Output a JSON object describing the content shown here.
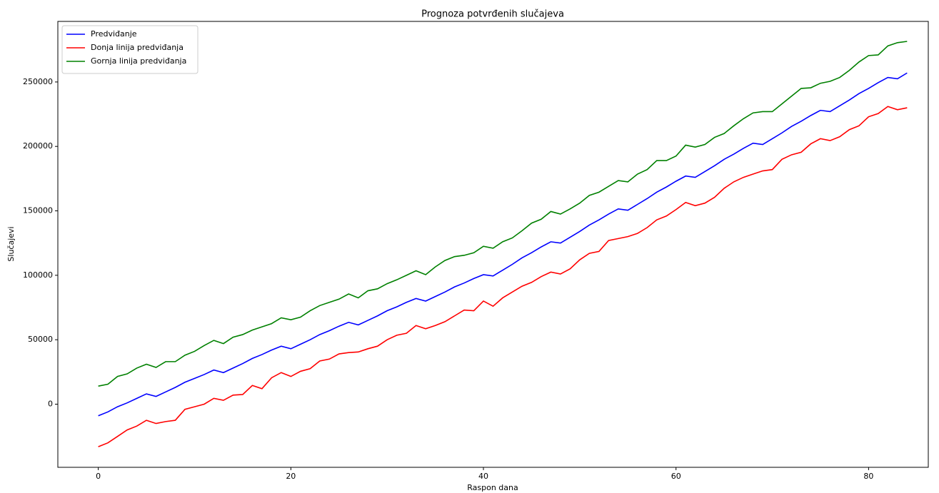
{
  "chart_data": {
    "type": "line",
    "title": "Prognoza potvrđenih slučajeva",
    "x_label": "Raspon dana",
    "y_label": "Slučajevi",
    "x": [
      0,
      1,
      2,
      3,
      4,
      5,
      6,
      7,
      8,
      9,
      10,
      11,
      12,
      13,
      14,
      15,
      16,
      17,
      18,
      19,
      20,
      21,
      22,
      23,
      24,
      25,
      26,
      27,
      28,
      29,
      30,
      31,
      32,
      33,
      34,
      35,
      36,
      37,
      38,
      39,
      40,
      41,
      42,
      43,
      44,
      45,
      46,
      47,
      48,
      49,
      50,
      51,
      52,
      53,
      54,
      55,
      56,
      57,
      58,
      59,
      60,
      61,
      62,
      63,
      64,
      65,
      66,
      67,
      68,
      69,
      70,
      71,
      72,
      73,
      74,
      75,
      76,
      77,
      78,
      79,
      80,
      81,
      82,
      83,
      84
    ],
    "series": [
      {
        "name": "Predviđanje",
        "color": "#0000ff",
        "values": [
          -9000,
          -6000,
          -2000,
          1000,
          4500,
          8000,
          6000,
          9500,
          13000,
          17000,
          20000,
          23000,
          26500,
          24500,
          28000,
          31500,
          35500,
          38500,
          42000,
          45000,
          43000,
          46500,
          50000,
          54000,
          57000,
          60500,
          63500,
          61500,
          65000,
          68500,
          72500,
          75500,
          79000,
          82000,
          80000,
          83500,
          87000,
          91000,
          94000,
          97500,
          100500,
          99500,
          104000,
          108500,
          113500,
          117500,
          122000,
          126000,
          125000,
          129500,
          134000,
          139000,
          143000,
          147500,
          151500,
          150500,
          155000,
          159500,
          164500,
          168500,
          173000,
          177000,
          176000,
          180500,
          185000,
          190000,
          194000,
          198500,
          202500,
          201500,
          206000,
          210500,
          215500,
          219500,
          224000,
          228000,
          227000,
          231500,
          236000,
          241000,
          245000,
          249500,
          253500,
          252500,
          257000
        ]
      },
      {
        "name": "Donja linija predviđanja",
        "color": "#ff0000",
        "values": [
          -33000,
          -30000,
          -25000,
          -20000,
          -17000,
          -12500,
          -15000,
          -13500,
          -12500,
          -4000,
          -2000,
          0,
          4500,
          3000,
          7000,
          7500,
          14500,
          12000,
          20500,
          24500,
          21500,
          25500,
          27500,
          33500,
          35000,
          39000,
          40000,
          40500,
          43000,
          45000,
          50000,
          53500,
          55000,
          61000,
          58500,
          61000,
          64000,
          68500,
          73000,
          72500,
          80000,
          76000,
          82500,
          87000,
          91500,
          94500,
          99000,
          102500,
          101000,
          105000,
          112000,
          117000,
          118500,
          127000,
          128500,
          130000,
          132500,
          137000,
          143000,
          146000,
          151000,
          156500,
          154000,
          156000,
          160500,
          167500,
          172500,
          176000,
          178500,
          181000,
          182000,
          190000,
          193500,
          195500,
          202000,
          206000,
          204500,
          207500,
          213000,
          216000,
          223000,
          225500,
          231000,
          228500,
          230000
        ]
      },
      {
        "name": "Gornja linija predviđanja",
        "color": "#008000",
        "values": [
          14000,
          15500,
          21500,
          23500,
          28000,
          31000,
          28500,
          33000,
          33000,
          38000,
          41000,
          45500,
          49500,
          47000,
          52000,
          54000,
          57500,
          60000,
          62500,
          67000,
          65500,
          67500,
          72500,
          76500,
          79000,
          81500,
          85500,
          82500,
          88000,
          89500,
          93500,
          96500,
          100000,
          103500,
          100500,
          106500,
          111500,
          114500,
          115500,
          117500,
          122500,
          121000,
          126000,
          129000,
          134500,
          140500,
          143500,
          149500,
          147500,
          151500,
          156000,
          162000,
          164500,
          169000,
          173500,
          172500,
          178500,
          182000,
          189000,
          189000,
          192500,
          201000,
          199500,
          201500,
          207000,
          210000,
          216000,
          221500,
          226000,
          227000,
          227000,
          233000,
          239000,
          245000,
          245500,
          249000,
          250500,
          253500,
          259000,
          265500,
          270500,
          271000,
          278000,
          280500,
          281500
        ]
      }
    ],
    "xlim": [
      -4.2,
      86.2
    ],
    "ylim": [
      -49000,
      297000
    ],
    "xticks": [
      0,
      20,
      40,
      60,
      80
    ],
    "yticks": [
      0,
      50000,
      100000,
      150000,
      200000,
      250000
    ],
    "grid": false,
    "legend": "upper left"
  }
}
